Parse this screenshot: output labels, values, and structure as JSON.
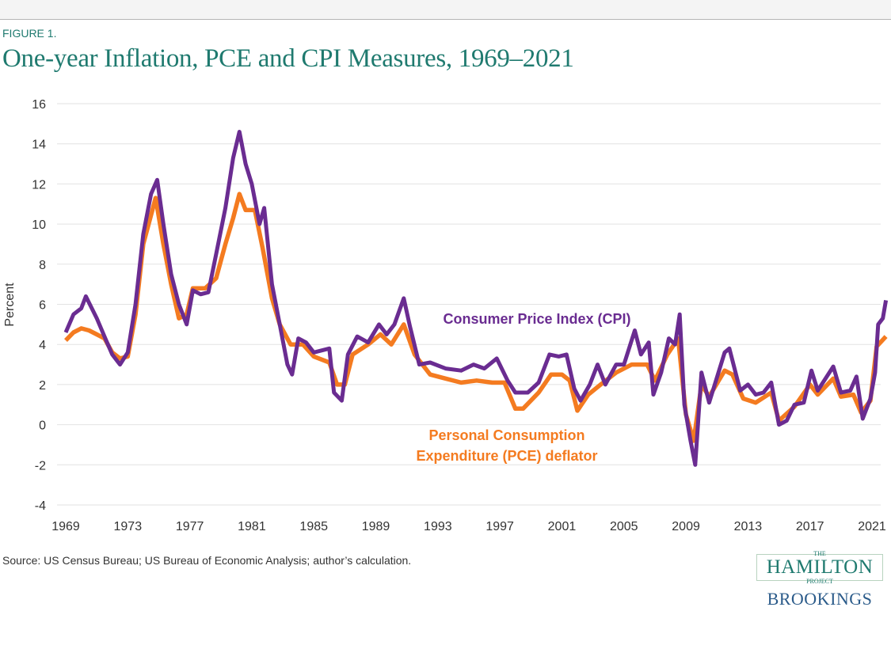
{
  "figure_label": "FIGURE 1.",
  "source": "Source: US Census Bureau; US Bureau of Economic Analysis; author’s calculation.",
  "logo": {
    "the": "THE",
    "hamilton": "HAMILTON",
    "project": "PROJECT",
    "brookings": "BROOKINGS"
  },
  "chart_data": {
    "type": "line",
    "title": "One-year Inflation, PCE and CPI Measures, 1969–2021",
    "xlabel": "",
    "ylabel": "Percent",
    "xlim": [
      1969,
      2022
    ],
    "ylim": [
      -4,
      16
    ],
    "xticks": [
      1969,
      1973,
      1977,
      1981,
      1985,
      1989,
      1993,
      1997,
      2001,
      2005,
      2009,
      2013,
      2017,
      2021
    ],
    "yticks": [
      -4,
      -2,
      0,
      2,
      4,
      6,
      8,
      10,
      12,
      14,
      16
    ],
    "grid": true,
    "series": [
      {
        "name": "Personal Consumption Expenditure (PCE) deflator",
        "label_lines": [
          "Personal Consumption",
          "Expenditure (PCE) deflator"
        ],
        "color": "#f47b20",
        "points": [
          [
            1969,
            4.2
          ],
          [
            1969.5,
            4.6
          ],
          [
            1970,
            4.8
          ],
          [
            1970.5,
            4.7
          ],
          [
            1971,
            4.5
          ],
          [
            1971.5,
            4.3
          ],
          [
            1972,
            3.6
          ],
          [
            1972.5,
            3.3
          ],
          [
            1973,
            3.4
          ],
          [
            1973.5,
            5.5
          ],
          [
            1974,
            9
          ],
          [
            1974.8,
            11.3
          ],
          [
            1975.3,
            9
          ],
          [
            1975.8,
            7
          ],
          [
            1976.3,
            5.3
          ],
          [
            1976.8,
            5.5
          ],
          [
            1977.2,
            6.8
          ],
          [
            1978,
            6.8
          ],
          [
            1978.7,
            7.3
          ],
          [
            1979.3,
            9
          ],
          [
            1979.8,
            10.3
          ],
          [
            1980.2,
            11.5
          ],
          [
            1980.6,
            10.7
          ],
          [
            1981.2,
            10.7
          ],
          [
            1981.7,
            8.8
          ],
          [
            1982.3,
            6.3
          ],
          [
            1982.8,
            5
          ],
          [
            1983.5,
            4
          ],
          [
            1984.3,
            4
          ],
          [
            1985,
            3.4
          ],
          [
            1986,
            3.1
          ],
          [
            1986.5,
            2
          ],
          [
            1987,
            2
          ],
          [
            1987.5,
            3.5
          ],
          [
            1988.5,
            4
          ],
          [
            1989.3,
            4.5
          ],
          [
            1990,
            4
          ],
          [
            1990.8,
            5
          ],
          [
            1991.5,
            3.5
          ],
          [
            1992.5,
            2.5
          ],
          [
            1993.5,
            2.3
          ],
          [
            1994.5,
            2.1
          ],
          [
            1995.5,
            2.2
          ],
          [
            1996.5,
            2.1
          ],
          [
            1997.3,
            2.1
          ],
          [
            1998,
            0.8
          ],
          [
            1998.5,
            0.8
          ],
          [
            1999.5,
            1.6
          ],
          [
            2000.3,
            2.5
          ],
          [
            2001,
            2.5
          ],
          [
            2001.5,
            2.2
          ],
          [
            2002,
            0.7
          ],
          [
            2002.7,
            1.5
          ],
          [
            2003.5,
            2
          ],
          [
            2004.5,
            2.6
          ],
          [
            2005.5,
            3
          ],
          [
            2006.5,
            3
          ],
          [
            2007,
            2.2
          ],
          [
            2007.8,
            3.5
          ],
          [
            2008.5,
            4.3
          ],
          [
            2009,
            0.5
          ],
          [
            2009.5,
            -0.8
          ],
          [
            2010,
            2
          ],
          [
            2010.5,
            1.4
          ],
          [
            2011.5,
            2.7
          ],
          [
            2012,
            2.5
          ],
          [
            2012.7,
            1.3
          ],
          [
            2013.5,
            1.1
          ],
          [
            2014.5,
            1.6
          ],
          [
            2015,
            0.2
          ],
          [
            2016,
            0.9
          ],
          [
            2017,
            2
          ],
          [
            2017.5,
            1.5
          ],
          [
            2018.5,
            2.3
          ],
          [
            2019,
            1.4
          ],
          [
            2019.8,
            1.5
          ],
          [
            2020.3,
            0.6
          ],
          [
            2020.9,
            1.2
          ],
          [
            2021.3,
            3.9
          ],
          [
            2021.9,
            4.4
          ]
        ]
      },
      {
        "name": "Consumer Price Index (CPI)",
        "label_lines": [
          "Consumer Price Index (CPI)"
        ],
        "color": "#6a2c91",
        "points": [
          [
            1969,
            4.6
          ],
          [
            1969.5,
            5.5
          ],
          [
            1970,
            5.8
          ],
          [
            1970.3,
            6.4
          ],
          [
            1971,
            5.3
          ],
          [
            1971.5,
            4.4
          ],
          [
            1972,
            3.5
          ],
          [
            1972.5,
            3
          ],
          [
            1973,
            3.6
          ],
          [
            1973.5,
            6
          ],
          [
            1974,
            9.5
          ],
          [
            1974.5,
            11.5
          ],
          [
            1974.9,
            12.2
          ],
          [
            1975.3,
            10
          ],
          [
            1975.8,
            7.5
          ],
          [
            1976.3,
            6
          ],
          [
            1976.8,
            5
          ],
          [
            1977.2,
            6.7
          ],
          [
            1977.7,
            6.5
          ],
          [
            1978.2,
            6.6
          ],
          [
            1978.7,
            8.5
          ],
          [
            1979.3,
            10.8
          ],
          [
            1979.8,
            13.3
          ],
          [
            1980.2,
            14.6
          ],
          [
            1980.6,
            13
          ],
          [
            1981,
            12
          ],
          [
            1981.5,
            10
          ],
          [
            1981.8,
            10.8
          ],
          [
            1982.3,
            7
          ],
          [
            1982.8,
            5
          ],
          [
            1983.3,
            3
          ],
          [
            1983.6,
            2.5
          ],
          [
            1984,
            4.3
          ],
          [
            1984.5,
            4.1
          ],
          [
            1985,
            3.6
          ],
          [
            1985.5,
            3.7
          ],
          [
            1986,
            3.8
          ],
          [
            1986.3,
            1.6
          ],
          [
            1986.8,
            1.2
          ],
          [
            1987.2,
            3.5
          ],
          [
            1987.8,
            4.4
          ],
          [
            1988.5,
            4.1
          ],
          [
            1989.2,
            5
          ],
          [
            1989.7,
            4.5
          ],
          [
            1990.2,
            5
          ],
          [
            1990.8,
            6.3
          ],
          [
            1991.2,
            4.9
          ],
          [
            1991.8,
            3
          ],
          [
            1992.5,
            3.1
          ],
          [
            1993.5,
            2.8
          ],
          [
            1994.5,
            2.7
          ],
          [
            1995.3,
            3
          ],
          [
            1996,
            2.8
          ],
          [
            1996.8,
            3.3
          ],
          [
            1997.5,
            2.2
          ],
          [
            1998,
            1.6
          ],
          [
            1998.8,
            1.6
          ],
          [
            1999.5,
            2.1
          ],
          [
            2000.2,
            3.5
          ],
          [
            2000.8,
            3.4
          ],
          [
            2001.3,
            3.5
          ],
          [
            2001.8,
            1.8
          ],
          [
            2002.2,
            1.2
          ],
          [
            2002.8,
            2
          ],
          [
            2003.3,
            3
          ],
          [
            2003.8,
            2
          ],
          [
            2004.5,
            3
          ],
          [
            2005,
            3
          ],
          [
            2005.7,
            4.7
          ],
          [
            2006.1,
            3.5
          ],
          [
            2006.6,
            4.1
          ],
          [
            2006.9,
            1.5
          ],
          [
            2007.4,
            2.6
          ],
          [
            2007.9,
            4.3
          ],
          [
            2008.3,
            4
          ],
          [
            2008.6,
            5.5
          ],
          [
            2008.9,
            1
          ],
          [
            2009.3,
            -0.8
          ],
          [
            2009.6,
            -2
          ],
          [
            2010,
            2.6
          ],
          [
            2010.5,
            1.1
          ],
          [
            2011.5,
            3.6
          ],
          [
            2011.8,
            3.8
          ],
          [
            2012.5,
            1.7
          ],
          [
            2013,
            2
          ],
          [
            2013.5,
            1.5
          ],
          [
            2014,
            1.6
          ],
          [
            2014.5,
            2.1
          ],
          [
            2015,
            0
          ],
          [
            2015.5,
            0.2
          ],
          [
            2016,
            1
          ],
          [
            2016.6,
            1.1
          ],
          [
            2017.1,
            2.7
          ],
          [
            2017.5,
            1.7
          ],
          [
            2018.5,
            2.9
          ],
          [
            2019,
            1.6
          ],
          [
            2019.6,
            1.7
          ],
          [
            2020,
            2.4
          ],
          [
            2020.4,
            0.3
          ],
          [
            2020.9,
            1.3
          ],
          [
            2021.2,
            2.6
          ],
          [
            2021.4,
            5
          ],
          [
            2021.7,
            5.3
          ],
          [
            2021.9,
            6.2
          ]
        ]
      }
    ]
  }
}
